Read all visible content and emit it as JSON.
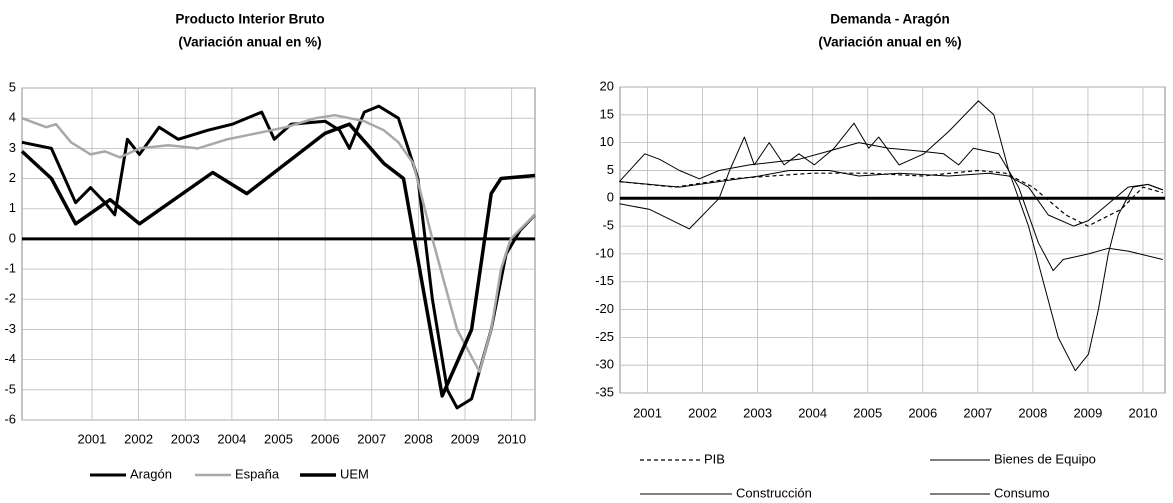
{
  "chart_data": [
    {
      "type": "line",
      "title": "Producto Interior Bruto",
      "subtitle": "(Variación anual en %)",
      "xlim": [
        1999.5,
        2010.5
      ],
      "xticks": [
        2001,
        2002,
        2003,
        2004,
        2005,
        2006,
        2007,
        2008,
        2009,
        2010
      ],
      "ylim": [
        -6,
        5
      ],
      "yticks": [
        -6,
        -5,
        -4,
        -3,
        -2,
        -1,
        0,
        1,
        2,
        3,
        4,
        5
      ],
      "grid": true,
      "series": [
        {
          "name": "Aragón",
          "color": "#000000",
          "line_width": 3,
          "line_style": "solid",
          "x": [
            1999.5,
            2000.13,
            2000.65,
            2000.97,
            2001.28,
            2001.49,
            2001.76,
            2002.02,
            2002.44,
            2002.85,
            2003.48,
            2004.01,
            2004.64,
            2004.91,
            2005.27,
            2006.0,
            2006.31,
            2006.52,
            2006.84,
            2007.15,
            2007.57,
            2007.99,
            2008.3,
            2008.62,
            2008.83,
            2009.14,
            2009.56,
            2009.88,
            2010.19,
            2010.5
          ],
          "values": [
            3.2,
            3.0,
            1.2,
            1.7,
            1.2,
            0.8,
            3.3,
            2.8,
            3.7,
            3.3,
            3.6,
            3.8,
            4.2,
            3.3,
            3.8,
            3.9,
            3.6,
            3.0,
            4.2,
            4.4,
            4.0,
            2.0,
            -2.0,
            -5.0,
            -5.6,
            -5.3,
            -3.0,
            -0.5,
            0.3,
            0.8
          ]
        },
        {
          "name": "España",
          "color": "#a8a8a8",
          "line_width": 2.5,
          "line_style": "solid",
          "x": [
            1999.5,
            2000.02,
            2000.23,
            2000.55,
            2000.97,
            2001.28,
            2001.6,
            2002.02,
            2002.64,
            2003.27,
            2003.9,
            2004.53,
            2005.16,
            2005.79,
            2006.21,
            2006.84,
            2007.26,
            2007.57,
            2007.89,
            2008.3,
            2008.83,
            2009.31,
            2009.56,
            2009.77,
            2009.98,
            2010.3,
            2010.5
          ],
          "values": [
            4.0,
            3.7,
            3.8,
            3.2,
            2.8,
            2.9,
            2.7,
            3.0,
            3.1,
            3.0,
            3.3,
            3.5,
            3.7,
            4.0,
            4.1,
            3.9,
            3.6,
            3.2,
            2.5,
            0.0,
            -3.0,
            -4.4,
            -3.0,
            -1.0,
            0.0,
            0.5,
            0.8
          ]
        },
        {
          "name": "UEM",
          "color": "#000000",
          "line_width": 3.5,
          "line_style": "solid",
          "x": [
            1999.5,
            2000.13,
            2000.65,
            2001.39,
            2002.02,
            2003.59,
            2004.32,
            2006.0,
            2006.52,
            2007.26,
            2007.68,
            2008.51,
            2009.14,
            2009.56,
            2009.77,
            2010.5
          ],
          "values": [
            2.9,
            2.0,
            0.5,
            1.3,
            0.5,
            2.2,
            1.5,
            3.5,
            3.8,
            2.5,
            2.0,
            -5.2,
            -3.0,
            1.5,
            2.0,
            2.1
          ]
        }
      ]
    },
    {
      "type": "line",
      "title": "Demanda - Aragón",
      "subtitle": "(Variación anual en %)",
      "xlim": [
        2000.5,
        2010.4
      ],
      "xticks": [
        2001,
        2002,
        2003,
        2004,
        2005,
        2006,
        2007,
        2008,
        2009,
        2010
      ],
      "ylim": [
        -35,
        20
      ],
      "yticks": [
        -35,
        -30,
        -25,
        -20,
        -15,
        -10,
        -5,
        0,
        5,
        10,
        15,
        20
      ],
      "grid": true,
      "series": [
        {
          "name": "PIB",
          "color": "#000000",
          "line_width": 1.2,
          "line_style": "dashed",
          "x": [
            2000.49,
            2001.5,
            2002.5,
            2004.0,
            2005.0,
            2006.0,
            2007.0,
            2007.5,
            2008.0,
            2008.6,
            2009.0,
            2009.6,
            2010.0,
            2010.36
          ],
          "values": [
            3,
            2,
            3.5,
            4.5,
            4.5,
            4,
            5,
            4.5,
            2,
            -3,
            -5,
            -2,
            2,
            1
          ]
        },
        {
          "name": "Bienes de Equipo",
          "color": "#000000",
          "line_width": 1,
          "line_style": "solid",
          "x": [
            2000.49,
            2001.04,
            2001.76,
            2002.3,
            2002.49,
            2002.76,
            2002.94,
            2003.21,
            2003.48,
            2003.75,
            2004.03,
            2004.39,
            2004.75,
            2005.02,
            2005.2,
            2005.57,
            2006.02,
            2006.47,
            2007.01,
            2007.29,
            2007.56,
            2007.92,
            2008.19,
            2008.46,
            2008.77,
            2009.01,
            2009.19,
            2009.37,
            2009.55,
            2009.82,
            2010.09,
            2010.36
          ],
          "values": [
            -1,
            -2,
            -5.5,
            0,
            5,
            11,
            6,
            10,
            6,
            8,
            6,
            9,
            13.5,
            9,
            11,
            6,
            8,
            12,
            17.5,
            15,
            5,
            -5,
            -15,
            -25,
            -31,
            -28,
            -20,
            -10,
            -3,
            2,
            2.5,
            1.5
          ]
        },
        {
          "name": "Construcción",
          "color": "#000000",
          "line_width": 1,
          "line_style": "solid",
          "x": [
            2000.49,
            2000.95,
            2001.22,
            2001.58,
            2001.94,
            2002.3,
            2002.85,
            2003.75,
            2004.3,
            2004.84,
            2005.38,
            2005.93,
            2006.38,
            2006.65,
            2006.92,
            2007.38,
            2007.74,
            2008.1,
            2008.37,
            2008.55,
            2009.01,
            2009.37,
            2009.73,
            2010.36
          ],
          "values": [
            3,
            8,
            7,
            5,
            3.5,
            5,
            6,
            7,
            8.5,
            10,
            9,
            8.5,
            8,
            6,
            9,
            8,
            2,
            -8,
            -13,
            -11,
            -10,
            -9,
            -9.5,
            -11
          ]
        },
        {
          "name": "Consumo",
          "color": "#000000",
          "line_width": 1,
          "line_style": "solid",
          "x": [
            2000.49,
            2001.04,
            2001.58,
            2002.3,
            2003.03,
            2003.57,
            2004.3,
            2004.84,
            2005.57,
            2006.47,
            2007.2,
            2007.56,
            2007.92,
            2008.28,
            2008.74,
            2009.01,
            2009.37,
            2009.73,
            2010.09,
            2010.36
          ],
          "values": [
            3,
            2.5,
            2,
            3,
            4,
            5,
            5,
            4,
            4.5,
            4,
            4.5,
            4,
            2,
            -3,
            -5,
            -4,
            -1,
            2,
            2.5,
            1.5
          ]
        }
      ]
    }
  ]
}
